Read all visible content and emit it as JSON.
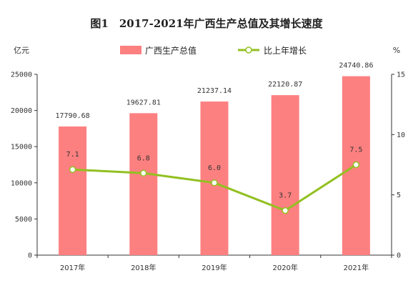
{
  "chart_data": {
    "type": "bar",
    "title": "图1　2017-2021年广西生产总值及其增长速度",
    "categories": [
      "2017年",
      "2018年",
      "2019年",
      "2020年",
      "2021年"
    ],
    "series": [
      {
        "name": "广西生产总值",
        "type": "bar",
        "axis": "left",
        "values": [
          17790.68,
          19627.81,
          21237.14,
          22120.87,
          24740.86
        ],
        "labels": [
          "17790.68",
          "19627.81",
          "21237.14",
          "22120.87",
          "24740.86"
        ]
      },
      {
        "name": "比上年增长",
        "type": "line",
        "axis": "right",
        "values": [
          7.1,
          6.8,
          6.0,
          3.7,
          7.5
        ],
        "labels": [
          "7.1",
          "6.8",
          "6.0",
          "3.7",
          "7.5"
        ]
      }
    ],
    "ylabel": "亿元",
    "y2label": "%",
    "ylim": [
      0,
      25000
    ],
    "y2lim": [
      0,
      15
    ],
    "yticks": [
      "0",
      "5000",
      "10000",
      "15000",
      "20000",
      "25000"
    ],
    "y2ticks": [
      "0",
      "5",
      "10",
      "15"
    ],
    "grid": false,
    "legend": "top-center",
    "colors": {
      "bar": "#fd8080",
      "line": "#92c020",
      "marker_fill": "#ffffff"
    }
  }
}
